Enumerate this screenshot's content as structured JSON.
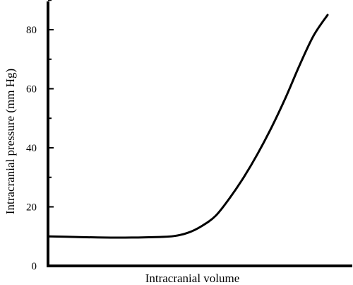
{
  "chart_data": {
    "type": "line",
    "title": "",
    "xlabel": "Intracranial volume",
    "ylabel": "Intracranial pressure (mm Hg)",
    "ylim": [
      0,
      90
    ],
    "yticks": [
      0,
      20,
      40,
      60,
      80
    ],
    "x_ticks_labeled": false,
    "grid": false,
    "legend": "none",
    "line_color": "#000000",
    "series": [
      {
        "name": "",
        "x": [
          0,
          10,
          20,
          30,
          40,
          45,
          50,
          55,
          60,
          65,
          70,
          75,
          80,
          85,
          90,
          95,
          100
        ],
        "values": [
          10,
          9.8,
          9.6,
          9.6,
          9.8,
          10.1,
          11.2,
          13.5,
          17,
          23,
          30,
          38,
          47,
          57,
          68,
          78,
          85
        ]
      }
    ]
  }
}
